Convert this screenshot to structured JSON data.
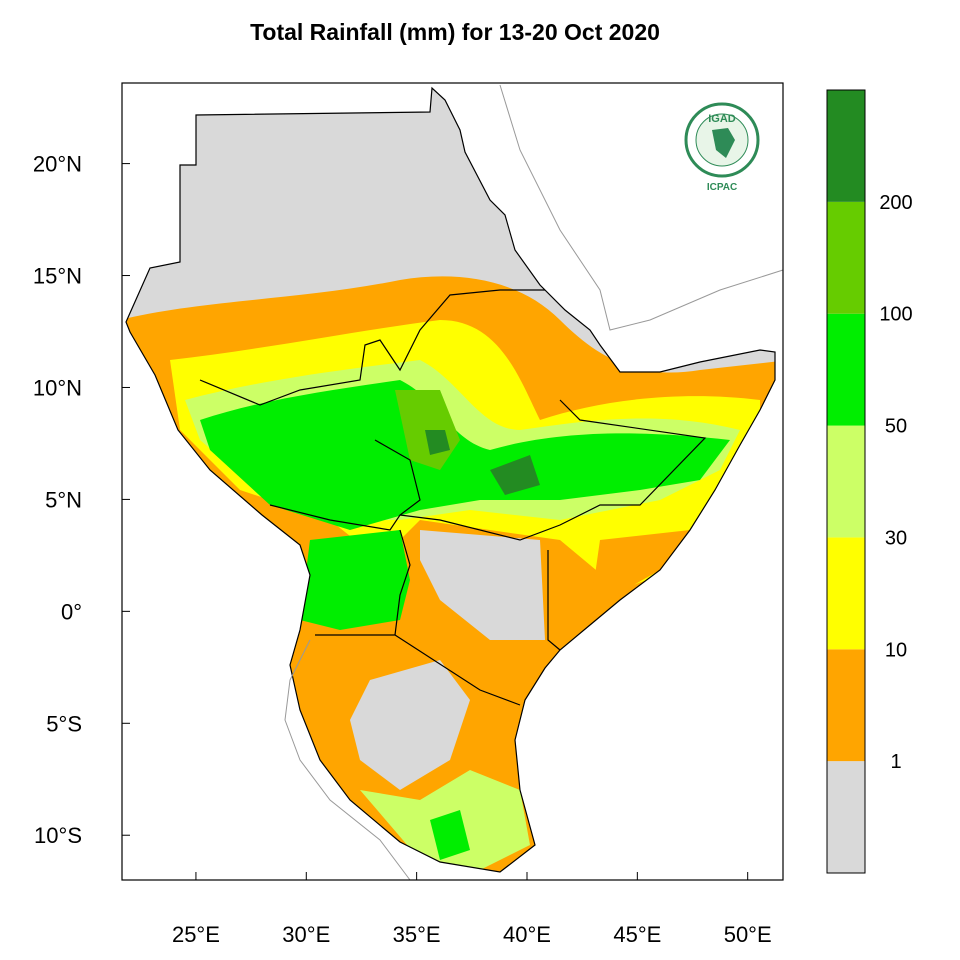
{
  "title": "Total Rainfall (mm) for 13-20 Oct 2020",
  "map": {
    "xlim": [
      21.65,
      51.6
    ],
    "ylim": [
      -12,
      23.6
    ],
    "xticks": [
      {
        "value": 25,
        "label": "25°E"
      },
      {
        "value": 30,
        "label": "30°E"
      },
      {
        "value": 35,
        "label": "35°E"
      },
      {
        "value": 40,
        "label": "40°E"
      },
      {
        "value": 45,
        "label": "45°E"
      },
      {
        "value": 50,
        "label": "50°E"
      }
    ],
    "yticks": [
      {
        "value": 20,
        "label": "20°N"
      },
      {
        "value": 15,
        "label": "15°N"
      },
      {
        "value": 10,
        "label": "10°N"
      },
      {
        "value": 5,
        "label": "5°N"
      },
      {
        "value": 0,
        "label": "0°"
      },
      {
        "value": -5,
        "label": "5°S"
      },
      {
        "value": -10,
        "label": "10°S"
      }
    ]
  },
  "colorbar": {
    "levels": [
      1,
      10,
      30,
      50,
      100,
      200
    ],
    "colors": [
      "#d9d9d9",
      "#ffa500",
      "#ffff00",
      "#ccff66",
      "#00ee00",
      "#66cc00",
      "#238b22"
    ]
  },
  "logo": {
    "top": "IGAD",
    "bottom": "ICPAC"
  }
}
